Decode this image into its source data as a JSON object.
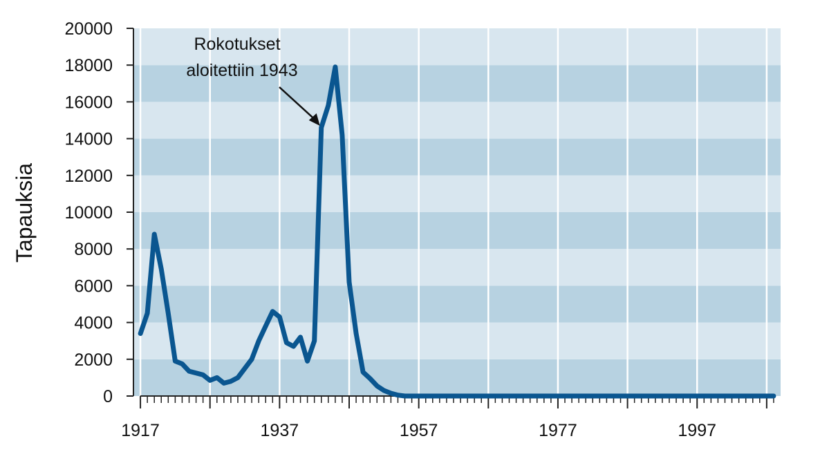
{
  "chart_data": {
    "type": "line",
    "title": "",
    "xlabel": "",
    "ylabel": "Tapauksia",
    "xlim": [
      1916,
      2009
    ],
    "ylim": [
      0,
      20000
    ],
    "x_ticks": [
      1917,
      1937,
      1957,
      1977,
      1997
    ],
    "y_ticks": [
      0,
      2000,
      4000,
      6000,
      8000,
      10000,
      12000,
      14000,
      16000,
      18000,
      20000
    ],
    "grid": true,
    "colors": {
      "band_light": "#d8e6ef",
      "band_dark": "#b7d2e1",
      "line": "#0a5690",
      "gridline": "#ffffff"
    },
    "annotation": {
      "lines": [
        "Rokotukset",
        "aloitettiin 1943"
      ],
      "x": 1942.8,
      "y": 14700
    },
    "series": [
      {
        "name": "",
        "x": [
          1917,
          1918,
          1919,
          1920,
          1921,
          1922,
          1923,
          1924,
          1925,
          1926,
          1927,
          1928,
          1929,
          1930,
          1931,
          1932,
          1933,
          1934,
          1935,
          1936,
          1937,
          1938,
          1939,
          1940,
          1941,
          1942,
          1943,
          1944,
          1945,
          1946,
          1947,
          1948,
          1949,
          1950,
          1951,
          1952,
          1953,
          1954,
          1955,
          1956,
          1957,
          1958,
          1959,
          1960,
          1961,
          1962,
          1963,
          1964,
          1965,
          1966,
          1967,
          1968,
          1969,
          1970,
          1971,
          1972,
          1973,
          1974,
          1975,
          1976,
          1977,
          1978,
          1979,
          1980,
          1981,
          1982,
          1983,
          1984,
          1985,
          1986,
          1987,
          1988,
          1989,
          1990,
          1991,
          1992,
          1993,
          1994,
          1995,
          1996,
          1997,
          1998,
          1999,
          2000,
          2001,
          2002,
          2003,
          2004,
          2005,
          2006,
          2007,
          2008
        ],
        "values": [
          3400,
          4500,
          8800,
          6900,
          4500,
          1900,
          1750,
          1350,
          1250,
          1150,
          850,
          1000,
          700,
          800,
          1000,
          1500,
          2000,
          3000,
          3800,
          4600,
          4300,
          2900,
          2700,
          3200,
          1900,
          3000,
          14600,
          15800,
          17900,
          14200,
          6200,
          3400,
          1300,
          950,
          550,
          300,
          150,
          50,
          0,
          0,
          0,
          0,
          0,
          0,
          0,
          0,
          0,
          0,
          0,
          0,
          0,
          0,
          0,
          0,
          0,
          0,
          0,
          0,
          0,
          0,
          0,
          0,
          0,
          0,
          0,
          0,
          0,
          0,
          0,
          0,
          0,
          0,
          0,
          0,
          0,
          0,
          0,
          0,
          0,
          0,
          0,
          0,
          0,
          0,
          0,
          0,
          0,
          0,
          0,
          0,
          0,
          0
        ]
      }
    ]
  }
}
